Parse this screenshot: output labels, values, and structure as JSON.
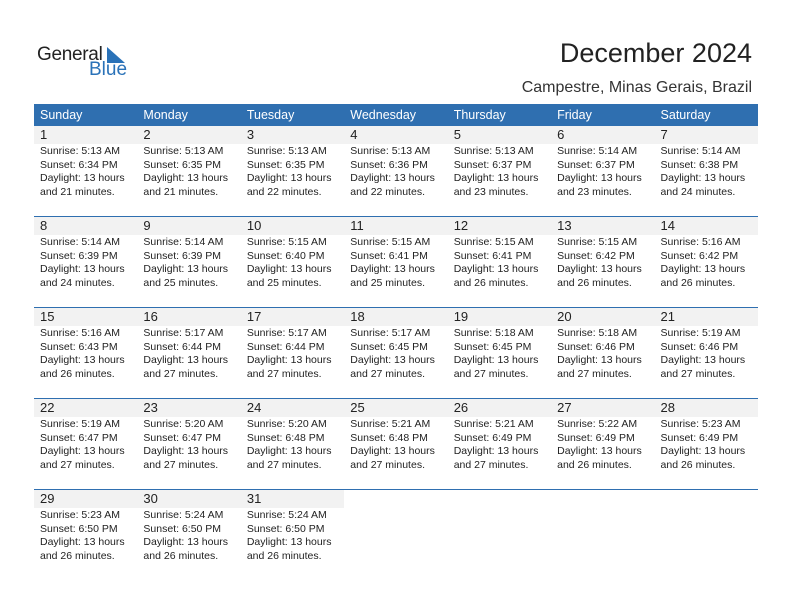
{
  "logo": {
    "text_general": "General",
    "text_blue": "Blue"
  },
  "title": "December 2024",
  "subtitle": "Campestre, Minas Gerais, Brazil",
  "colors": {
    "header": "#2f6fb0",
    "brand": "#2a72b8",
    "band": "#f2f2f2"
  },
  "weekdays": [
    "Sunday",
    "Monday",
    "Tuesday",
    "Wednesday",
    "Thursday",
    "Friday",
    "Saturday"
  ],
  "first_weekday_offset": 0,
  "days": [
    {
      "day": "1",
      "sunrise": "Sunrise: 5:13 AM",
      "sunset": "Sunset: 6:34 PM",
      "daylight": "Daylight: 13 hours",
      "minutes": "and 21 minutes."
    },
    {
      "day": "2",
      "sunrise": "Sunrise: 5:13 AM",
      "sunset": "Sunset: 6:35 PM",
      "daylight": "Daylight: 13 hours",
      "minutes": "and 21 minutes."
    },
    {
      "day": "3",
      "sunrise": "Sunrise: 5:13 AM",
      "sunset": "Sunset: 6:35 PM",
      "daylight": "Daylight: 13 hours",
      "minutes": "and 22 minutes."
    },
    {
      "day": "4",
      "sunrise": "Sunrise: 5:13 AM",
      "sunset": "Sunset: 6:36 PM",
      "daylight": "Daylight: 13 hours",
      "minutes": "and 22 minutes."
    },
    {
      "day": "5",
      "sunrise": "Sunrise: 5:13 AM",
      "sunset": "Sunset: 6:37 PM",
      "daylight": "Daylight: 13 hours",
      "minutes": "and 23 minutes."
    },
    {
      "day": "6",
      "sunrise": "Sunrise: 5:14 AM",
      "sunset": "Sunset: 6:37 PM",
      "daylight": "Daylight: 13 hours",
      "minutes": "and 23 minutes."
    },
    {
      "day": "7",
      "sunrise": "Sunrise: 5:14 AM",
      "sunset": "Sunset: 6:38 PM",
      "daylight": "Daylight: 13 hours",
      "minutes": "and 24 minutes."
    },
    {
      "day": "8",
      "sunrise": "Sunrise: 5:14 AM",
      "sunset": "Sunset: 6:39 PM",
      "daylight": "Daylight: 13 hours",
      "minutes": "and 24 minutes."
    },
    {
      "day": "9",
      "sunrise": "Sunrise: 5:14 AM",
      "sunset": "Sunset: 6:39 PM",
      "daylight": "Daylight: 13 hours",
      "minutes": "and 25 minutes."
    },
    {
      "day": "10",
      "sunrise": "Sunrise: 5:15 AM",
      "sunset": "Sunset: 6:40 PM",
      "daylight": "Daylight: 13 hours",
      "minutes": "and 25 minutes."
    },
    {
      "day": "11",
      "sunrise": "Sunrise: 5:15 AM",
      "sunset": "Sunset: 6:41 PM",
      "daylight": "Daylight: 13 hours",
      "minutes": "and 25 minutes."
    },
    {
      "day": "12",
      "sunrise": "Sunrise: 5:15 AM",
      "sunset": "Sunset: 6:41 PM",
      "daylight": "Daylight: 13 hours",
      "minutes": "and 26 minutes."
    },
    {
      "day": "13",
      "sunrise": "Sunrise: 5:15 AM",
      "sunset": "Sunset: 6:42 PM",
      "daylight": "Daylight: 13 hours",
      "minutes": "and 26 minutes."
    },
    {
      "day": "14",
      "sunrise": "Sunrise: 5:16 AM",
      "sunset": "Sunset: 6:42 PM",
      "daylight": "Daylight: 13 hours",
      "minutes": "and 26 minutes."
    },
    {
      "day": "15",
      "sunrise": "Sunrise: 5:16 AM",
      "sunset": "Sunset: 6:43 PM",
      "daylight": "Daylight: 13 hours",
      "minutes": "and 26 minutes."
    },
    {
      "day": "16",
      "sunrise": "Sunrise: 5:17 AM",
      "sunset": "Sunset: 6:44 PM",
      "daylight": "Daylight: 13 hours",
      "minutes": "and 27 minutes."
    },
    {
      "day": "17",
      "sunrise": "Sunrise: 5:17 AM",
      "sunset": "Sunset: 6:44 PM",
      "daylight": "Daylight: 13 hours",
      "minutes": "and 27 minutes."
    },
    {
      "day": "18",
      "sunrise": "Sunrise: 5:17 AM",
      "sunset": "Sunset: 6:45 PM",
      "daylight": "Daylight: 13 hours",
      "minutes": "and 27 minutes."
    },
    {
      "day": "19",
      "sunrise": "Sunrise: 5:18 AM",
      "sunset": "Sunset: 6:45 PM",
      "daylight": "Daylight: 13 hours",
      "minutes": "and 27 minutes."
    },
    {
      "day": "20",
      "sunrise": "Sunrise: 5:18 AM",
      "sunset": "Sunset: 6:46 PM",
      "daylight": "Daylight: 13 hours",
      "minutes": "and 27 minutes."
    },
    {
      "day": "21",
      "sunrise": "Sunrise: 5:19 AM",
      "sunset": "Sunset: 6:46 PM",
      "daylight": "Daylight: 13 hours",
      "minutes": "and 27 minutes."
    },
    {
      "day": "22",
      "sunrise": "Sunrise: 5:19 AM",
      "sunset": "Sunset: 6:47 PM",
      "daylight": "Daylight: 13 hours",
      "minutes": "and 27 minutes."
    },
    {
      "day": "23",
      "sunrise": "Sunrise: 5:20 AM",
      "sunset": "Sunset: 6:47 PM",
      "daylight": "Daylight: 13 hours",
      "minutes": "and 27 minutes."
    },
    {
      "day": "24",
      "sunrise": "Sunrise: 5:20 AM",
      "sunset": "Sunset: 6:48 PM",
      "daylight": "Daylight: 13 hours",
      "minutes": "and 27 minutes."
    },
    {
      "day": "25",
      "sunrise": "Sunrise: 5:21 AM",
      "sunset": "Sunset: 6:48 PM",
      "daylight": "Daylight: 13 hours",
      "minutes": "and 27 minutes."
    },
    {
      "day": "26",
      "sunrise": "Sunrise: 5:21 AM",
      "sunset": "Sunset: 6:49 PM",
      "daylight": "Daylight: 13 hours",
      "minutes": "and 27 minutes."
    },
    {
      "day": "27",
      "sunrise": "Sunrise: 5:22 AM",
      "sunset": "Sunset: 6:49 PM",
      "daylight": "Daylight: 13 hours",
      "minutes": "and 26 minutes."
    },
    {
      "day": "28",
      "sunrise": "Sunrise: 5:23 AM",
      "sunset": "Sunset: 6:49 PM",
      "daylight": "Daylight: 13 hours",
      "minutes": "and 26 minutes."
    },
    {
      "day": "29",
      "sunrise": "Sunrise: 5:23 AM",
      "sunset": "Sunset: 6:50 PM",
      "daylight": "Daylight: 13 hours",
      "minutes": "and 26 minutes."
    },
    {
      "day": "30",
      "sunrise": "Sunrise: 5:24 AM",
      "sunset": "Sunset: 6:50 PM",
      "daylight": "Daylight: 13 hours",
      "minutes": "and 26 minutes."
    },
    {
      "day": "31",
      "sunrise": "Sunrise: 5:24 AM",
      "sunset": "Sunset: 6:50 PM",
      "daylight": "Daylight: 13 hours",
      "minutes": "and 26 minutes."
    }
  ]
}
